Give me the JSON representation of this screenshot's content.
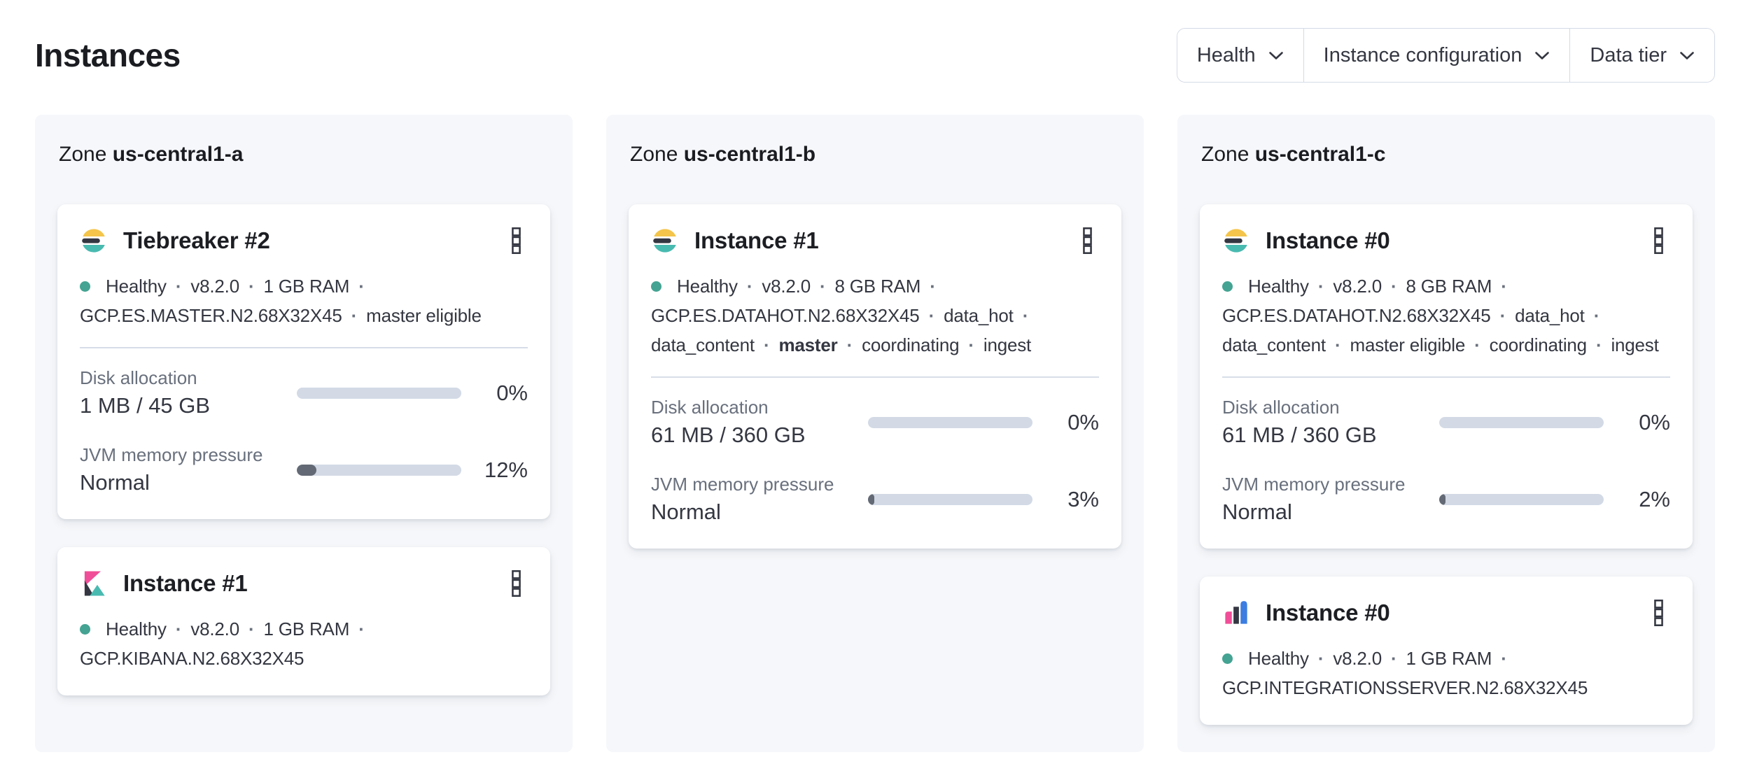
{
  "page": {
    "title": "Instances"
  },
  "filters": [
    {
      "label": "Health"
    },
    {
      "label": "Instance configuration"
    },
    {
      "label": "Data tier"
    }
  ],
  "colors": {
    "healthy": "#44a392",
    "progress_track": "#d3dae6",
    "progress_fill": "#636a75",
    "elastic_yellow": "#f4c54a",
    "elastic_teal": "#49bab0",
    "elastic_dark": "#343741",
    "kibana_pink": "#f04e98",
    "integrations_blue": "#3b7de1"
  },
  "zones": [
    {
      "prefix": "Zone",
      "name": "us-central1-a",
      "instances": [
        {
          "icon": "elasticsearch",
          "title": "Tiebreaker #2",
          "health": "Healthy",
          "status_items": [
            {
              "text": "Healthy"
            },
            {
              "text": "v8.2.0"
            },
            {
              "text": "1 GB RAM"
            },
            {
              "text": "GCP.ES.MASTER.N2.68X32X45"
            },
            {
              "text": "master eligible"
            }
          ],
          "metrics": [
            {
              "label": "Disk allocation",
              "value": "1 MB / 45 GB",
              "percent": 0,
              "percent_label": "0%"
            },
            {
              "label": "JVM memory pressure",
              "value": "Normal",
              "percent": 12,
              "percent_label": "12%"
            }
          ]
        },
        {
          "icon": "kibana",
          "title": "Instance #1",
          "health": "Healthy",
          "status_items": [
            {
              "text": "Healthy"
            },
            {
              "text": "v8.2.0"
            },
            {
              "text": "1 GB RAM"
            },
            {
              "text": "GCP.KIBANA.N2.68X32X45"
            }
          ],
          "metrics": []
        }
      ]
    },
    {
      "prefix": "Zone",
      "name": "us-central1-b",
      "instances": [
        {
          "icon": "elasticsearch",
          "title": "Instance #1",
          "health": "Healthy",
          "status_items": [
            {
              "text": "Healthy"
            },
            {
              "text": "v8.2.0"
            },
            {
              "text": "8 GB RAM"
            },
            {
              "text": "GCP.ES.DATAHOT.N2.68X32X45"
            },
            {
              "text": "data_hot"
            },
            {
              "text": "data_content"
            },
            {
              "text": "master",
              "bold": true
            },
            {
              "text": "coordinating"
            },
            {
              "text": "ingest"
            }
          ],
          "metrics": [
            {
              "label": "Disk allocation",
              "value": "61 MB / 360 GB",
              "percent": 0,
              "percent_label": "0%"
            },
            {
              "label": "JVM memory pressure",
              "value": "Normal",
              "percent": 3,
              "percent_label": "3%"
            }
          ]
        }
      ]
    },
    {
      "prefix": "Zone",
      "name": "us-central1-c",
      "instances": [
        {
          "icon": "elasticsearch",
          "title": "Instance #0",
          "health": "Healthy",
          "status_items": [
            {
              "text": "Healthy"
            },
            {
              "text": "v8.2.0"
            },
            {
              "text": "8 GB RAM"
            },
            {
              "text": "GCP.ES.DATAHOT.N2.68X32X45"
            },
            {
              "text": "data_hot"
            },
            {
              "text": "data_content"
            },
            {
              "text": "master eligible"
            },
            {
              "text": "coordinating"
            },
            {
              "text": "ingest"
            }
          ],
          "metrics": [
            {
              "label": "Disk allocation",
              "value": "61 MB / 360 GB",
              "percent": 0,
              "percent_label": "0%"
            },
            {
              "label": "JVM memory pressure",
              "value": "Normal",
              "percent": 2,
              "percent_label": "2%"
            }
          ]
        },
        {
          "icon": "integrations_server",
          "title": "Instance #0",
          "health": "Healthy",
          "status_items": [
            {
              "text": "Healthy"
            },
            {
              "text": "v8.2.0"
            },
            {
              "text": "1 GB RAM"
            },
            {
              "text": "GCP.INTEGRATIONSSERVER.N2.68X32X45"
            }
          ],
          "metrics": []
        }
      ]
    }
  ]
}
